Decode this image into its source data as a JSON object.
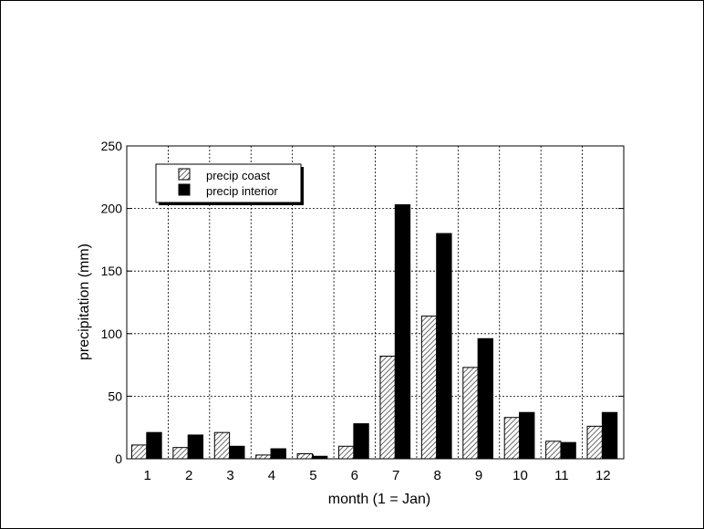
{
  "chart_data": {
    "type": "bar",
    "title": "",
    "xlabel": "month (1 = Jan)",
    "ylabel": "precipitation (mm)",
    "ylim": [
      0,
      250
    ],
    "yticks": [
      0,
      50,
      100,
      150,
      200,
      250
    ],
    "categories": [
      "1",
      "2",
      "3",
      "4",
      "5",
      "6",
      "7",
      "8",
      "9",
      "10",
      "11",
      "12"
    ],
    "grid": true,
    "legend_position": "top-left",
    "series": [
      {
        "name": "precip coast",
        "fill": "hatched",
        "color": "#9a9a9a",
        "values": [
          11,
          9,
          21,
          3,
          4,
          10,
          82,
          114,
          73,
          33,
          14,
          26
        ]
      },
      {
        "name": "precip interior",
        "fill": "solid",
        "color": "#000000",
        "values": [
          21,
          19,
          10,
          8,
          2,
          28,
          203,
          180,
          96,
          37,
          13,
          37
        ]
      }
    ]
  }
}
